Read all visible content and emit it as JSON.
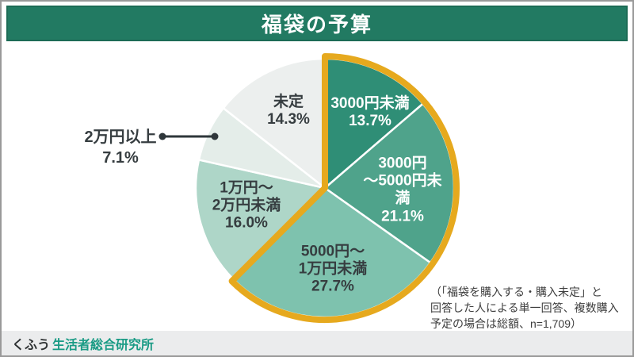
{
  "header": {
    "title": "福袋の予算",
    "bg_color": "#227a62",
    "text_color": "#ffffff"
  },
  "chart_data": {
    "type": "pie",
    "title": "福袋の予算",
    "unit": "%",
    "start_angle_deg": -90,
    "direction": "clockwise",
    "slices": [
      {
        "label": "3000円未満",
        "value": 13.7,
        "display": "3000円未満\n13.7%",
        "color": "#2f8e76",
        "text_color": "#ffffff",
        "highlighted": true
      },
      {
        "label": "3000円〜5000円未満",
        "value": 21.1,
        "display": "3000円\n〜5000円未\n満\n21.1%",
        "color": "#4fa38b",
        "text_color": "#ffffff",
        "highlighted": true
      },
      {
        "label": "5000円〜1万円未満",
        "value": 27.7,
        "display": "5000円〜\n1万円未満\n27.7%",
        "color": "#7ec2ae",
        "text_color": "#363d40",
        "highlighted": true
      },
      {
        "label": "1万円〜2万円未満",
        "value": 16.0,
        "display": "1万円〜\n2万円未満\n16.0%",
        "color": "#aed6c8",
        "text_color": "#363d40",
        "highlighted": false
      },
      {
        "label": "2万円以上",
        "value": 7.1,
        "display": "2万円以上\n7.1%",
        "color": "#e4ede9",
        "text_color": "#363d40",
        "highlighted": false,
        "label_outside": true
      },
      {
        "label": "未定",
        "value": 14.3,
        "display": "未定\n14.3%",
        "color": "#ecefee",
        "text_color": "#363d40",
        "highlighted": false
      }
    ],
    "highlight": {
      "applies_to": [
        "3000円未満",
        "3000円〜5000円未満",
        "5000円〜1万円未満"
      ],
      "color": "#e6a91e"
    },
    "separator_color": "#ffffff",
    "leader_line_color": "#2e363a",
    "note": "（「福袋を購入する・購入未定」と\n回答した人による単一回答、複数購入\n予定の場合は総額、n=1,709）"
  },
  "footer": {
    "brand": "くふう",
    "org": "生活者総合研究所",
    "bg_color": "#ebeced",
    "org_color": "#1a9b85"
  }
}
